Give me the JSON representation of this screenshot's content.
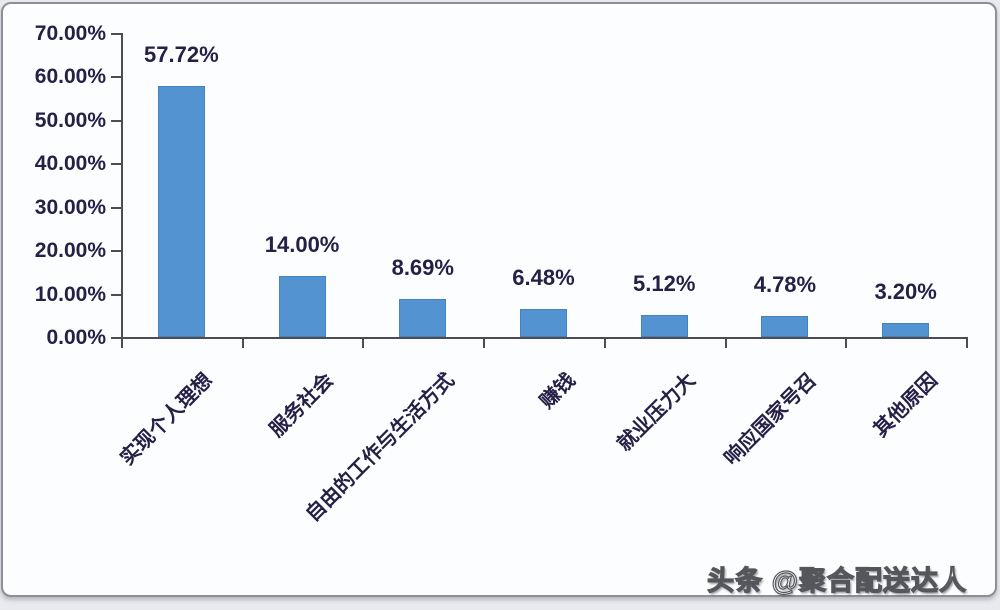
{
  "watermark": "头条 @聚合配送达人",
  "colors": {
    "bar": "#5493d2",
    "bar_border": "#4583be",
    "axis": "#4c4c52",
    "text": "#262046",
    "card_border": "#8e8e98",
    "page_bg": "#e8eaee",
    "card_bg": "#fcfdfe"
  },
  "chart_data": {
    "type": "bar",
    "title": "",
    "xlabel": "",
    "ylabel": "",
    "grid": false,
    "legend": null,
    "ylim": [
      0,
      70
    ],
    "y_tick_step": 10,
    "y_ticks": [
      "0.00%",
      "10.00%",
      "20.00%",
      "30.00%",
      "40.00%",
      "50.00%",
      "60.00%",
      "70.00%"
    ],
    "categories": [
      "实现个人理想",
      "服务社会",
      "自由的工作与生活方式",
      "赚钱",
      "就业压力大",
      "响应国家号召",
      "其他原因"
    ],
    "values": [
      57.72,
      14.0,
      8.69,
      6.48,
      5.12,
      4.78,
      3.2
    ],
    "value_labels": [
      "57.72%",
      "14.00%",
      "8.69%",
      "6.48%",
      "5.12%",
      "4.78%",
      "3.20%"
    ]
  }
}
